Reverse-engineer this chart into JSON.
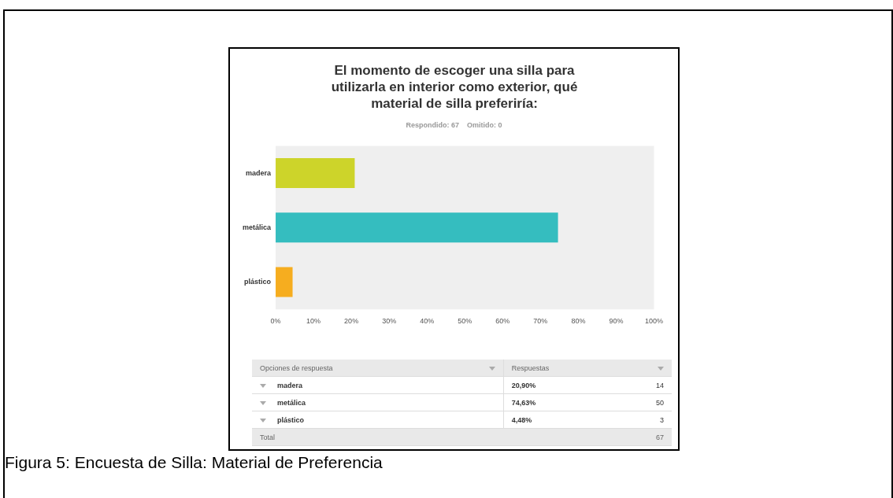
{
  "chart_data": {
    "type": "bar",
    "orientation": "horizontal",
    "title": "El momento de escoger una silla para utilizarla en interior como exterior, qué material de silla preferiría:",
    "subtitle": "Respondido: 67    Omitido: 0",
    "categories": [
      "madera",
      "metálica",
      "plástico"
    ],
    "values": [
      20.9,
      74.63,
      4.48
    ],
    "colors": [
      "#cdd42a",
      "#35bdbf",
      "#f6ad1f"
    ],
    "xlim": [
      0,
      100
    ],
    "xticks": [
      {
        "value": 0,
        "label": "0%"
      },
      {
        "value": 10,
        "label": "10%"
      },
      {
        "value": 20,
        "label": "20%"
      },
      {
        "value": 30,
        "label": "30%"
      },
      {
        "value": 40,
        "label": "40%"
      },
      {
        "value": 50,
        "label": "50%"
      },
      {
        "value": 60,
        "label": "60%"
      },
      {
        "value": 70,
        "label": "70%"
      },
      {
        "value": 80,
        "label": "80%"
      },
      {
        "value": 90,
        "label": "90%"
      },
      {
        "value": 100,
        "label": "100%"
      }
    ],
    "grid": false,
    "legend": false,
    "annotations": [
      "Opciones de respuesta",
      "Respuestas",
      "20,90%",
      "14",
      "74,63%",
      "50",
      "4,48%",
      "3",
      "Total",
      "67",
      "Figura 5: Encuesta de Silla: Material de Preferencia"
    ]
  }
}
